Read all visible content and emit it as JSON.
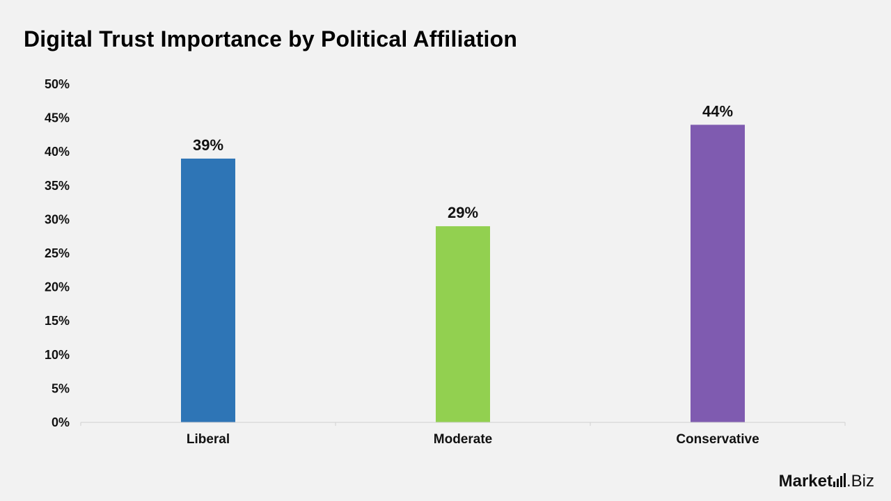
{
  "chart_data": {
    "type": "bar",
    "title": "Digital Trust Importance by Political Affiliation",
    "categories": [
      "Liberal",
      "Moderate",
      "Conservative"
    ],
    "values": [
      39,
      29,
      44
    ],
    "value_labels": [
      "39%",
      "29%",
      "44%"
    ],
    "colors": [
      "#2e75b6",
      "#92d050",
      "#7f5bb0"
    ],
    "ylim": [
      0,
      50
    ],
    "yticks": [
      0,
      5,
      10,
      15,
      20,
      25,
      30,
      35,
      40,
      45,
      50
    ],
    "ytick_labels": [
      "0%",
      "5%",
      "10%",
      "15%",
      "20%",
      "25%",
      "30%",
      "35%",
      "40%",
      "45%",
      "50%"
    ],
    "xlabel": "",
    "ylabel": "",
    "grid": false,
    "legend": "none"
  },
  "brand": {
    "logo_text_bold": "Market",
    "logo_text_tail": ".Biz"
  }
}
